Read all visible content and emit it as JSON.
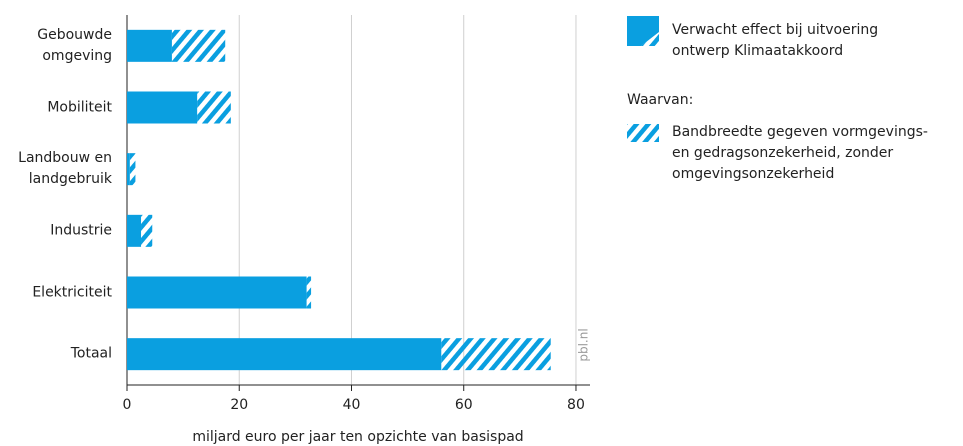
{
  "chart_data": {
    "type": "hbar_range",
    "xlabel": "miljard euro per jaar ten opzichte van basispad",
    "categories": [
      "Gebouwde omgeving",
      "Mobiliteit",
      "Landbouw en landgebruik",
      "Industrie",
      "Elektriciteit",
      "Totaal"
    ],
    "series": [
      {
        "name": "Verwacht effect bij uitvoering ontwerp Klimaatakkoord",
        "color": "#0a9fe0",
        "values": [
          8,
          12.5,
          0.5,
          2.5,
          32,
          56
        ]
      },
      {
        "name": "Bandbreedte gegeven vormgevings- en gedragsonzekerheid, zonder omgevingsonzekerheid",
        "color": "#0a9fe0",
        "hatch": true,
        "values": [
          9.5,
          6,
          1,
          2,
          0.8,
          19.5
        ]
      }
    ],
    "legend_subtitle": "Waarvan:",
    "annotation": "pbl.nl",
    "xlim": [
      0,
      82.5
    ],
    "xticks": [
      0,
      20,
      40,
      60,
      80
    ],
    "grid": true
  }
}
